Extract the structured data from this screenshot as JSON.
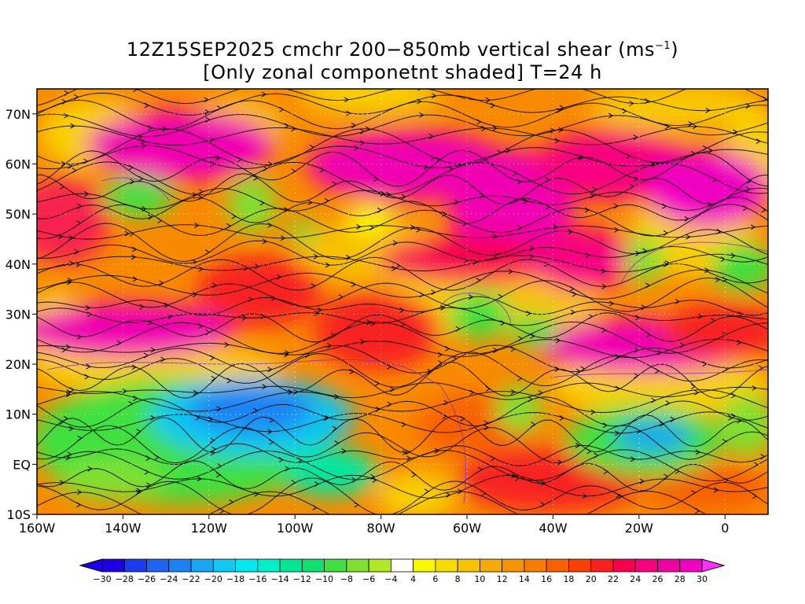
{
  "title": {
    "line1_prefix": "12Z15SEP2025 cmchr 200−850mb vertical shear (ms",
    "line1_sup": "−1",
    "line1_suffix": ")",
    "line2": "[Only zonal componetnt shaded] T=24 h"
  },
  "map": {
    "lon_range": [
      -160,
      10
    ],
    "lat_range": [
      -10,
      75
    ],
    "lon_ticks": [
      {
        "value": -160,
        "label": "160W"
      },
      {
        "value": -140,
        "label": "140W"
      },
      {
        "value": -120,
        "label": "120W"
      },
      {
        "value": -100,
        "label": "100W"
      },
      {
        "value": -80,
        "label": "80W"
      },
      {
        "value": -60,
        "label": "60W"
      },
      {
        "value": -40,
        "label": "40W"
      },
      {
        "value": -20,
        "label": "20W"
      },
      {
        "value": 0,
        "label": "0"
      }
    ],
    "lat_ticks": [
      {
        "value": -10,
        "label": "10S"
      },
      {
        "value": 0,
        "label": "EQ"
      },
      {
        "value": 10,
        "label": "10N"
      },
      {
        "value": 20,
        "label": "20N"
      },
      {
        "value": 30,
        "label": "30N"
      },
      {
        "value": 40,
        "label": "40N"
      },
      {
        "value": 50,
        "label": "50N"
      },
      {
        "value": 60,
        "label": "60N"
      },
      {
        "value": 70,
        "label": "70N"
      }
    ],
    "grid_lines": "dotted white"
  },
  "colorbar": {
    "labels": [
      "-30",
      "-28",
      "-26",
      "-24",
      "-22",
      "-20",
      "-18",
      "-16",
      "-14",
      "-12",
      "-10",
      "-8",
      "-6",
      "-4",
      "4",
      "6",
      "8",
      "10",
      "12",
      "14",
      "16",
      "18",
      "20",
      "22",
      "24",
      "26",
      "28",
      "30"
    ],
    "colors": [
      "#1e00e0",
      "#1c3cf0",
      "#1e64f2",
      "#1c82f4",
      "#18a6f2",
      "#10c8f0",
      "#00e8f0",
      "#00f0c8",
      "#00e896",
      "#10e070",
      "#40e040",
      "#80e030",
      "#b0e828",
      "#ffffff",
      "#f8f800",
      "#f8dc00",
      "#f8c400",
      "#f8aa00",
      "#f89400",
      "#f87c00",
      "#f86000",
      "#f84000",
      "#f82020",
      "#f80050",
      "#f80080",
      "#f000a0",
      "#f000c0"
    ],
    "low_arrow_color": "#1800f0",
    "high_arrow_color": "#ff30ff"
  }
}
